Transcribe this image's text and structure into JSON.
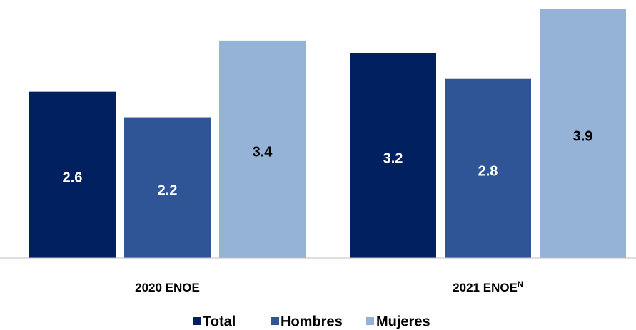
{
  "chart_data": {
    "type": "bar",
    "categories": [
      "2020 ENOE",
      "2021 ENOE"
    ],
    "category_superscripts": [
      null,
      "N"
    ],
    "series": [
      {
        "name": "Total",
        "color": "#002060",
        "label_color": "#ffffff",
        "values": [
          2.6,
          3.2
        ]
      },
      {
        "name": "Hombres",
        "color": "#2f5597",
        "label_color": "#ffffff",
        "values": [
          2.2,
          2.8
        ]
      },
      {
        "name": "Mujeres",
        "color": "#95b3d7",
        "label_color": "#000000",
        "values": [
          3.4,
          3.9
        ]
      }
    ],
    "legend": "bottom"
  }
}
